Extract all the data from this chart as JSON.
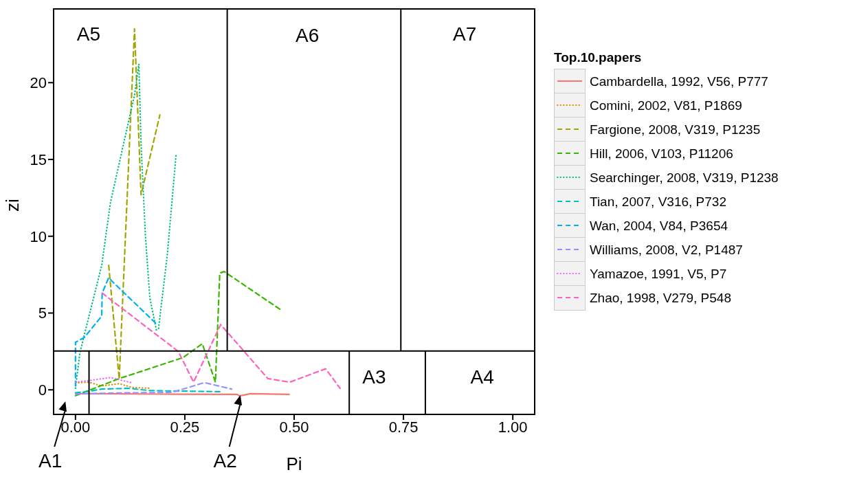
{
  "chart_data": {
    "type": "line",
    "xlabel": "Pi",
    "ylabel": "zi",
    "legend_title": "Top.10.papers",
    "legend": "right",
    "xlim": [
      -0.05,
      1.05
    ],
    "ylim": [
      -1.6,
      24.8
    ],
    "xticks": [
      {
        "value": 0,
        "label": "0.00"
      },
      {
        "value": 0.25,
        "label": "0.25"
      },
      {
        "value": 0.5,
        "label": "0.50"
      },
      {
        "value": 0.75,
        "label": "0.75"
      },
      {
        "value": 1,
        "label": "1.00"
      }
    ],
    "yticks": [
      0,
      5,
      10,
      15,
      20
    ],
    "series": [
      {
        "name": "Cambardella, 1992, V56, P777",
        "color": "#f8766d",
        "line_style": "solid",
        "x": [
          0,
          0.05,
          0.2,
          0.37,
          0.375,
          0.4,
          0.49
        ],
        "values": [
          -0.25,
          -0.25,
          -0.28,
          -0.3,
          -0.4,
          -0.25,
          -0.3
        ]
      },
      {
        "name": "Comini, 2002, V81, P1869",
        "color": "#d89000",
        "line_style": "dotted",
        "x": [
          0,
          0.03,
          0.06,
          0.1,
          0.13,
          0.17
        ],
        "values": [
          0.45,
          0.5,
          0.25,
          0.4,
          0.15,
          0.1
        ]
      },
      {
        "name": "Fargione, 2008, V319, P1235",
        "color": "#a3a500",
        "line_style": "dashed",
        "x": [
          0.076,
          0.1,
          0.135,
          0.15,
          0.193
        ],
        "values": [
          8.1,
          0.7,
          23.5,
          12.7,
          17.9
        ]
      },
      {
        "name": "Hill, 2006, V103, P11206",
        "color": "#39b600",
        "line_style": "dashed",
        "x": [
          0,
          0.097,
          0.246,
          0.29,
          0.32,
          0.33,
          0.34,
          0.47
        ],
        "values": [
          -0.38,
          0.7,
          2.1,
          3,
          0.5,
          7.6,
          7.7,
          5.2
        ]
      },
      {
        "name": "Searchinger, 2008, V319, P1238",
        "color": "#00bf7d",
        "line_style": "dotted",
        "x": [
          0,
          0.01,
          0.03,
          0.06,
          0.08,
          0.135,
          0.145,
          0.15,
          0.16,
          0.17,
          0.185,
          0.19,
          0.21,
          0.23
        ],
        "values": [
          0.1,
          2.4,
          4.7,
          8.1,
          12.2,
          19.2,
          21.2,
          16,
          10,
          6,
          3.9,
          4,
          8.8,
          15.3
        ]
      },
      {
        "name": "Tian, 2007, V316, P732",
        "color": "#00bfc4",
        "line_style": "dashed",
        "x": [
          0,
          0.03,
          0.06,
          0.12,
          0.17,
          0.28,
          0.33
        ],
        "values": [
          -0.2,
          -0.1,
          0.05,
          0.1,
          -0.05,
          -0.1,
          -0.12
        ]
      },
      {
        "name": "Wan, 2004, V84, P3654",
        "color": "#00b0f6",
        "line_style": "dashed",
        "x": [
          0,
          0,
          0.02,
          0.06,
          0.061,
          0.076,
          0.086,
          0.185
        ],
        "values": [
          0.25,
          3.1,
          3.4,
          4.8,
          6.3,
          7.3,
          7,
          4.3
        ]
      },
      {
        "name": "Williams, 2008, V2, P1487",
        "color": "#9590ff",
        "line_style": "dashed",
        "x": [
          0,
          0.11,
          0.22,
          0.295,
          0.357
        ],
        "values": [
          -0.27,
          -0.2,
          -0.17,
          0.47,
          0.05
        ]
      },
      {
        "name": "Yamazoe, 1991, V5, P7",
        "color": "#e76bf3",
        "line_style": "dotted",
        "x": [
          0,
          0.03,
          0.08,
          0.13
        ],
        "values": [
          0.5,
          0.6,
          0.8,
          0.45
        ]
      },
      {
        "name": "Zhao, 1998, V279, P548",
        "color": "#ff62bc",
        "line_style": "dashed",
        "x": [
          0.061,
          0.235,
          0.27,
          0.332,
          0.44,
          0.49,
          0.572,
          0.605
        ],
        "values": [
          6.3,
          2.5,
          0.5,
          4.25,
          0.73,
          0.5,
          1.37,
          0.1
        ]
      },
      {
        "color": "#000000",
        "line_style": "solid",
        "x": [
          -0.05,
          1.05
        ],
        "values": [
          2.53,
          2.53
        ]
      },
      {
        "color": "#000000",
        "line_style": "solid",
        "x": [
          0.031,
          0.031
        ],
        "values": [
          -1.6,
          2.53
        ]
      },
      {
        "color": "#000000",
        "line_style": "solid",
        "x": [
          0.347,
          0.347
        ],
        "values": [
          2.53,
          24.8
        ]
      },
      {
        "color": "#000000",
        "line_style": "solid",
        "x": [
          0.744,
          0.744
        ],
        "values": [
          2.53,
          24.8
        ]
      },
      {
        "color": "#000000",
        "line_style": "solid",
        "x": [
          0.626,
          0.626
        ],
        "values": [
          -1.6,
          2.53
        ]
      },
      {
        "color": "#000000",
        "line_style": "solid",
        "x": [
          0.8,
          0.8
        ],
        "values": [
          -1.6,
          2.53
        ]
      }
    ],
    "annotations": [
      "A5",
      "A6",
      "A7",
      "A3",
      "A4",
      "A1",
      {
        "text": "A2",
        "x": 0.377,
        "y": -0.35
      }
    ]
  }
}
